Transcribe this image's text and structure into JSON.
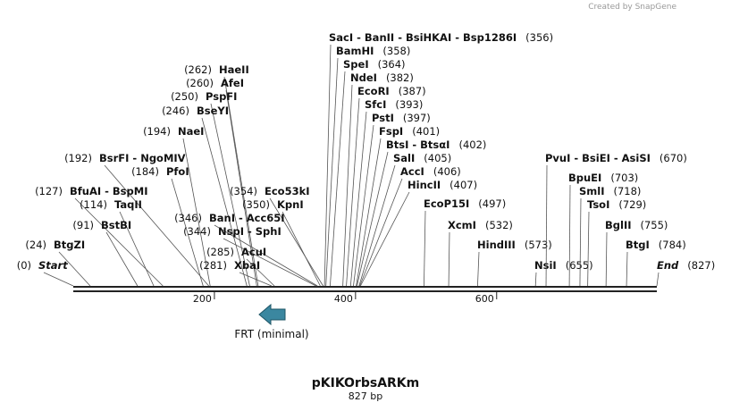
{
  "created_by": "Created by SnapGene",
  "map": {
    "title": "pKIKOrbsARKm",
    "subtitle": "827 bp",
    "length": 827,
    "ruler_ticks": [
      200,
      400,
      600
    ],
    "feature": {
      "label": "FRT (minimal)"
    },
    "sites": [
      {
        "label": "SacI - BanII - BsiHKAI - Bsp1286I",
        "position": 356,
        "position_label": "(356)"
      },
      {
        "label": "BamHI",
        "position": 358,
        "position_label": "(358)"
      },
      {
        "label": "SpeI",
        "position": 364,
        "position_label": "(364)"
      },
      {
        "label": "NdeI",
        "position": 382,
        "position_label": "(382)"
      },
      {
        "label": "EcoRI",
        "position": 387,
        "position_label": "(387)"
      },
      {
        "label": "SfcI",
        "position": 393,
        "position_label": "(393)"
      },
      {
        "label": "PstI",
        "position": 397,
        "position_label": "(397)"
      },
      {
        "label": "FspI",
        "position": 401,
        "position_label": "(401)"
      },
      {
        "label": "BtsI - BtsαI",
        "position": 402,
        "position_label": "(402)"
      },
      {
        "label": "SalI",
        "position": 405,
        "position_label": "(405)"
      },
      {
        "label": "AccI",
        "position": 406,
        "position_label": "(406)"
      },
      {
        "label": "HincII",
        "position": 407,
        "position_label": "(407)"
      },
      {
        "label": "EcoP15I",
        "position": 497,
        "position_label": "(497)"
      },
      {
        "label": "XcmI",
        "position": 532,
        "position_label": "(532)"
      },
      {
        "label": "HindIII",
        "position": 573,
        "position_label": "(573)"
      },
      {
        "label": "NsiI",
        "position": 655,
        "position_label": "(655)"
      },
      {
        "label": "PvuI - BsiEI - AsiSI",
        "position": 670,
        "position_label": "(670)"
      },
      {
        "label": "BpuEI",
        "position": 703,
        "position_label": "(703)"
      },
      {
        "label": "SmlI",
        "position": 718,
        "position_label": "(718)"
      },
      {
        "label": "TsoI",
        "position": 729,
        "position_label": "(729)"
      },
      {
        "label": "BglII",
        "position": 755,
        "position_label": "(755)"
      },
      {
        "label": "BtgI",
        "position": 784,
        "position_label": "(784)"
      },
      {
        "label": "End",
        "position": 827,
        "position_label": "(827)"
      },
      {
        "label": "HaeII",
        "position": 262,
        "position_label": "(262)"
      },
      {
        "label": "AfeI",
        "position": 260,
        "position_label": "(260)"
      },
      {
        "label": "PspFI",
        "position": 250,
        "position_label": "(250)"
      },
      {
        "label": "BseYI",
        "position": 246,
        "position_label": "(246)"
      },
      {
        "label": "NaeI",
        "position": 194,
        "position_label": "(194)"
      },
      {
        "label": "BsrFI - NgoMIV",
        "position": 192,
        "position_label": "(192)"
      },
      {
        "label": "PfoI",
        "position": 184,
        "position_label": "(184)"
      },
      {
        "label": "BfuAI - BspMI",
        "position": 127,
        "position_label": "(127)"
      },
      {
        "label": "TaqII",
        "position": 114,
        "position_label": "(114)"
      },
      {
        "label": "BstBI",
        "position": 91,
        "position_label": "(91)"
      },
      {
        "label": "BtgZI",
        "position": 24,
        "position_label": "(24)"
      },
      {
        "label": "Start",
        "position": 0,
        "position_label": "(0)"
      },
      {
        "label": "Eco53kI",
        "position": 354,
        "position_label": "(354)"
      },
      {
        "label": "KpnI",
        "position": 350,
        "position_label": "(350)"
      },
      {
        "label": "BanI - Acc65I",
        "position": 346,
        "position_label": "(346)"
      },
      {
        "label": "NspI - SphI",
        "position": 344,
        "position_label": "(344)"
      },
      {
        "label": "AcuI",
        "position": 285,
        "position_label": "(285)"
      },
      {
        "label": "XbaI",
        "position": 281,
        "position_label": "(281)"
      }
    ]
  }
}
